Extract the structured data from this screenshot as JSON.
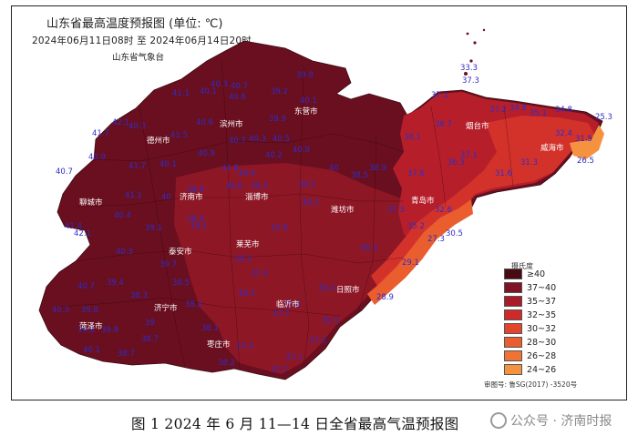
{
  "header": {
    "title": "山东省最高温度预报图 (单位: ℃)",
    "subtitle": "2024年06月11日08时 至 2024年06月14日20时",
    "agency": "山东省气象台"
  },
  "legend": {
    "title": "摄氏度",
    "items": [
      {
        "label": "≥40",
        "color": "#4a0a14"
      },
      {
        "label": "37~40",
        "color": "#7e1425"
      },
      {
        "label": "35~37",
        "color": "#a81c28"
      },
      {
        "label": "32~35",
        "color": "#cf2a2a"
      },
      {
        "label": "30~32",
        "color": "#e2452b"
      },
      {
        "label": "28~30",
        "color": "#ea5d2e"
      },
      {
        "label": "26~28",
        "color": "#f07234"
      },
      {
        "label": "24~26",
        "color": "#f5923f"
      }
    ]
  },
  "approval_number": "审图号: 鲁SG(2017) -3520号",
  "caption": "图 1   2024 年 6 月 11—14 日全省最高气温预报图",
  "watermark": "公众号 · 济南时报",
  "temperatures": [
    "33.3",
    "37.3",
    "37.1",
    "37.2",
    "34.8",
    "35.1",
    "34.8",
    "25.3",
    "32.4",
    "31.5",
    "26.5",
    "40.3",
    "40.7",
    "40.6",
    "41.1",
    "40.1",
    "39.8",
    "39.2",
    "40.1",
    "42.1",
    "40.3",
    "41.7",
    "40.9",
    "41.5",
    "40.6",
    "40.3",
    "40.5",
    "39.9",
    "40.2",
    "40.7",
    "40.9",
    "41.7",
    "40.1",
    "40.9",
    "41.8",
    "39.4",
    "40",
    "39.2",
    "38.9",
    "38.5",
    "40.7",
    "41.1",
    "40",
    "39.9",
    "38.6",
    "38.3",
    "37.6",
    "37.1",
    "39.3",
    "36.7",
    "36.3",
    "38.1",
    "31.6",
    "31.3",
    "41.4",
    "42.1",
    "40.4",
    "39.1",
    "39.1",
    "38.6",
    "37.8",
    "37.3",
    "35.2",
    "32.6",
    "30.5",
    "27.3",
    "29.1",
    "40.3",
    "39.7",
    "39.3",
    "38.5",
    "38.3",
    "36.3",
    "40.7",
    "39.4",
    "38.3",
    "38.2",
    "37.4",
    "36.2",
    "28.9",
    "39.8",
    "40.3",
    "39.8",
    "38.7",
    "38.1",
    "37.7",
    "36.4",
    "35.5",
    "39.9",
    "40.1",
    "38.7",
    "37.3",
    "39",
    "37.4",
    "37.1",
    "38.2",
    "37.7"
  ],
  "city_labels": [
    "德州市",
    "滨州市",
    "东营市",
    "烟台市",
    "威海市",
    "聊城市",
    "济南市",
    "淄博市",
    "潍坊市",
    "青岛市",
    "泰安市",
    "莱芜市",
    "济宁市",
    "临沂市",
    "日照市",
    "菏泽市",
    "枣庄市"
  ],
  "colors": {
    "deep": "#6a0f1f",
    "dark": "#7e1425",
    "mid": "#a81c28",
    "red": "#cf2a2a",
    "orange": "#ea5d2e",
    "light": "#f5923f",
    "temp_text": "#2f2cc8"
  }
}
